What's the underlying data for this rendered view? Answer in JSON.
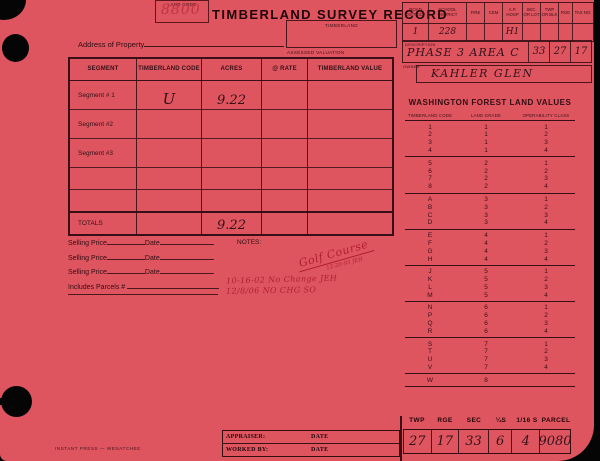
{
  "land_code_box": {
    "label": "LAND CODE",
    "value": "8800"
  },
  "title": "TIMBERLAND SURVEY RECORD",
  "district_table": {
    "headers": [
      "ROAD DISTRICT",
      "SCHOOL DISTRICT",
      "FIRE",
      "CEM",
      "A.P. HOSP",
      "SEC. OR LOT",
      "TWP OR BLK",
      "RGE",
      "TAX NO."
    ],
    "values": [
      "1",
      "228",
      "",
      "",
      "H1",
      "",
      "",
      "",
      ""
    ]
  },
  "description": {
    "label": "DESCRIPTION",
    "value": "PHASE 3  AREA C",
    "cells": [
      "33",
      "27",
      "17"
    ]
  },
  "owner": {
    "label": "OWNER",
    "value": "KAHLER GLEN"
  },
  "timberland_box_label": "TIMBERLAND",
  "address_label": "Address of Property",
  "assessed_valuation_label": "ASSESSED VALUATION",
  "segment_table": {
    "headers": [
      "SEGMENT",
      "TIMBERLAND CODE",
      "ACRES",
      "@ RATE",
      "TIMBERLAND VALUE"
    ],
    "rows": [
      {
        "label": "Segment # 1",
        "code": "U",
        "acres": "9.22",
        "rate": "",
        "value": ""
      },
      {
        "label": "Segment #2",
        "code": "",
        "acres": "",
        "rate": "",
        "value": ""
      },
      {
        "label": "Segment #3",
        "code": "",
        "acres": "",
        "rate": "",
        "value": ""
      },
      {
        "label": "",
        "code": "",
        "acres": "",
        "rate": "",
        "value": ""
      },
      {
        "label": "",
        "code": "",
        "acres": "",
        "rate": "",
        "value": ""
      }
    ],
    "totals": {
      "label": "TOTALS",
      "code": "",
      "acres": "9.22",
      "rate": "",
      "value": ""
    }
  },
  "selling": {
    "rows": [
      {
        "price_label": "Selling Price",
        "date_label": "Date"
      },
      {
        "price_label": "Selling Price",
        "date_label": "Date"
      },
      {
        "price_label": "Selling Price",
        "date_label": "Date"
      }
    ],
    "includes_label": "Includes Parcels #"
  },
  "notes": {
    "label": "NOTES:",
    "note1": "Golf Course",
    "note1_sub": "12-20-93 JEH",
    "note2": "10-16-02  No Change  JEH",
    "note3": "12/8/06  NO CHG  SO"
  },
  "forest_table": {
    "title": "WASHINGTON FOREST LAND VALUES",
    "headers": [
      "TIMBERLAND CODE",
      "LAND GRADE",
      "OPERABILITY CLASS"
    ],
    "groups": [
      [
        [
          "1",
          "1",
          "1"
        ],
        [
          "2",
          "1",
          "2"
        ],
        [
          "3",
          "1",
          "3"
        ],
        [
          "4",
          "1",
          "4"
        ]
      ],
      [
        [
          "5",
          "2",
          "1"
        ],
        [
          "6",
          "2",
          "2"
        ],
        [
          "7",
          "2",
          "3"
        ],
        [
          "8",
          "2",
          "4"
        ]
      ],
      [
        [
          "A",
          "3",
          "1"
        ],
        [
          "B",
          "3",
          "2"
        ],
        [
          "C",
          "3",
          "3"
        ],
        [
          "D",
          "3",
          "4"
        ]
      ],
      [
        [
          "E",
          "4",
          "1"
        ],
        [
          "F",
          "4",
          "2"
        ],
        [
          "G",
          "4",
          "3"
        ],
        [
          "H",
          "4",
          "4"
        ]
      ],
      [
        [
          "J",
          "5",
          "1"
        ],
        [
          "K",
          "5",
          "2"
        ],
        [
          "L",
          "5",
          "3"
        ],
        [
          "M",
          "5",
          "4"
        ]
      ],
      [
        [
          "N",
          "6",
          "1"
        ],
        [
          "P",
          "6",
          "2"
        ],
        [
          "Q",
          "6",
          "3"
        ],
        [
          "R",
          "6",
          "4"
        ]
      ],
      [
        [
          "S",
          "7",
          "1"
        ],
        [
          "T",
          "7",
          "2"
        ],
        [
          "U",
          "7",
          "3"
        ],
        [
          "V",
          "7",
          "4"
        ]
      ],
      [
        [
          "W",
          "8",
          ""
        ]
      ]
    ]
  },
  "appraiser_table": {
    "rows": [
      {
        "left": "APPRAISER:",
        "right": "DATE"
      },
      {
        "left": "WORKED BY:",
        "right": "DATE"
      }
    ]
  },
  "parcel_table": {
    "headers": [
      "TWP",
      "RGE",
      "SEC",
      "¼S",
      "1/16 S",
      "PARCEL"
    ],
    "values": [
      "27",
      "17",
      "33",
      "6",
      "4",
      "9080"
    ]
  },
  "footer": "INSTANT PRESS — WENATCHEE"
}
